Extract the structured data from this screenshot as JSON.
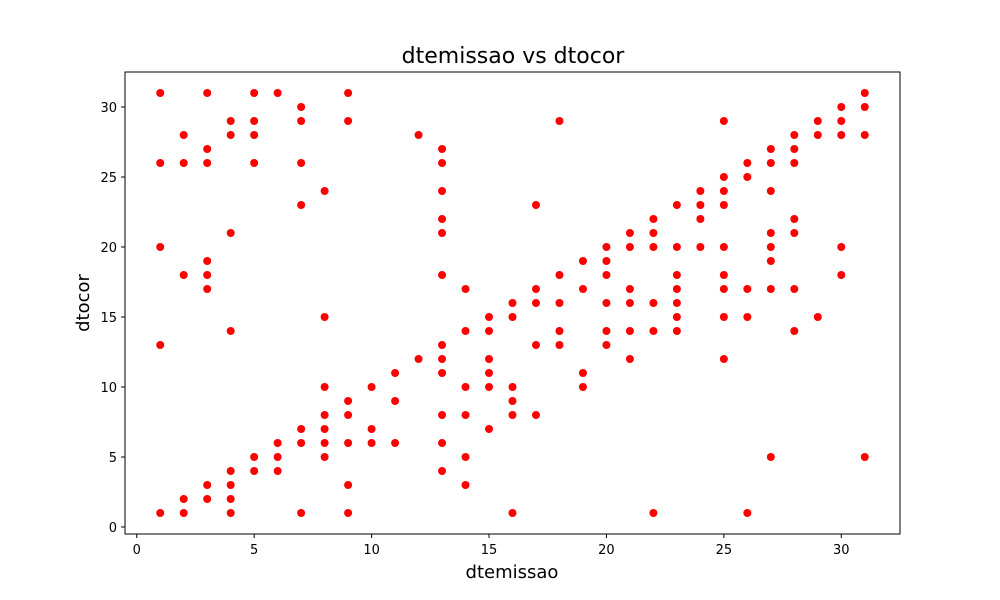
{
  "chart_data": {
    "type": "scatter",
    "title": "dtemissao vs dtocor",
    "xlabel": "dtemissao",
    "ylabel": "dtocor",
    "xlim": [
      -0.5,
      32.5
    ],
    "ylim": [
      -0.5,
      32.5
    ],
    "xticks": [
      0,
      5,
      10,
      15,
      20,
      25,
      30
    ],
    "yticks": [
      0,
      5,
      10,
      15,
      20,
      25,
      30
    ],
    "grid": false,
    "marker_color": "#ff0000",
    "series": [
      {
        "points": [
          [
            1,
            31
          ],
          [
            1,
            26
          ],
          [
            1,
            20
          ],
          [
            1,
            13
          ],
          [
            1,
            1
          ],
          [
            2,
            28
          ],
          [
            2,
            26
          ],
          [
            2,
            18
          ],
          [
            2,
            2
          ],
          [
            2,
            1
          ],
          [
            3,
            31
          ],
          [
            3,
            27
          ],
          [
            3,
            26
          ],
          [
            3,
            19
          ],
          [
            3,
            18
          ],
          [
            3,
            17
          ],
          [
            3,
            3
          ],
          [
            3,
            2
          ],
          [
            4,
            29
          ],
          [
            4,
            28
          ],
          [
            4,
            21
          ],
          [
            4,
            14
          ],
          [
            4,
            4
          ],
          [
            4,
            3
          ],
          [
            4,
            2
          ],
          [
            4,
            1
          ],
          [
            5,
            31
          ],
          [
            5,
            29
          ],
          [
            5,
            28
          ],
          [
            5,
            26
          ],
          [
            5,
            5
          ],
          [
            5,
            4
          ],
          [
            6,
            31
          ],
          [
            6,
            6
          ],
          [
            6,
            5
          ],
          [
            6,
            4
          ],
          [
            7,
            30
          ],
          [
            7,
            29
          ],
          [
            7,
            26
          ],
          [
            7,
            23
          ],
          [
            7,
            7
          ],
          [
            7,
            6
          ],
          [
            7,
            1
          ],
          [
            8,
            24
          ],
          [
            8,
            15
          ],
          [
            8,
            10
          ],
          [
            8,
            8
          ],
          [
            8,
            7
          ],
          [
            8,
            6
          ],
          [
            8,
            5
          ],
          [
            9,
            31
          ],
          [
            9,
            29
          ],
          [
            9,
            9
          ],
          [
            9,
            8
          ],
          [
            9,
            6
          ],
          [
            9,
            3
          ],
          [
            9,
            1
          ],
          [
            10,
            10
          ],
          [
            10,
            7
          ],
          [
            10,
            6
          ],
          [
            11,
            11
          ],
          [
            11,
            9
          ],
          [
            11,
            6
          ],
          [
            12,
            28
          ],
          [
            12,
            12
          ],
          [
            13,
            27
          ],
          [
            13,
            26
          ],
          [
            13,
            24
          ],
          [
            13,
            22
          ],
          [
            13,
            21
          ],
          [
            13,
            18
          ],
          [
            13,
            13
          ],
          [
            13,
            12
          ],
          [
            13,
            11
          ],
          [
            13,
            8
          ],
          [
            13,
            6
          ],
          [
            13,
            4
          ],
          [
            14,
            17
          ],
          [
            14,
            14
          ],
          [
            14,
            10
          ],
          [
            14,
            8
          ],
          [
            14,
            5
          ],
          [
            14,
            3
          ],
          [
            15,
            15
          ],
          [
            15,
            14
          ],
          [
            15,
            12
          ],
          [
            15,
            11
          ],
          [
            15,
            10
          ],
          [
            15,
            7
          ],
          [
            16,
            16
          ],
          [
            16,
            15
          ],
          [
            16,
            10
          ],
          [
            16,
            9
          ],
          [
            16,
            8
          ],
          [
            16,
            1
          ],
          [
            17,
            23
          ],
          [
            17,
            17
          ],
          [
            17,
            16
          ],
          [
            17,
            13
          ],
          [
            17,
            8
          ],
          [
            18,
            29
          ],
          [
            18,
            18
          ],
          [
            18,
            16
          ],
          [
            18,
            14
          ],
          [
            18,
            13
          ],
          [
            19,
            19
          ],
          [
            19,
            17
          ],
          [
            19,
            11
          ],
          [
            19,
            10
          ],
          [
            20,
            20
          ],
          [
            20,
            19
          ],
          [
            20,
            18
          ],
          [
            20,
            16
          ],
          [
            20,
            14
          ],
          [
            20,
            13
          ],
          [
            21,
            21
          ],
          [
            21,
            20
          ],
          [
            21,
            17
          ],
          [
            21,
            16
          ],
          [
            21,
            14
          ],
          [
            21,
            12
          ],
          [
            22,
            22
          ],
          [
            22,
            21
          ],
          [
            22,
            20
          ],
          [
            22,
            16
          ],
          [
            22,
            14
          ],
          [
            22,
            1
          ],
          [
            23,
            23
          ],
          [
            23,
            20
          ],
          [
            23,
            18
          ],
          [
            23,
            17
          ],
          [
            23,
            16
          ],
          [
            23,
            15
          ],
          [
            23,
            14
          ],
          [
            24,
            24
          ],
          [
            24,
            23
          ],
          [
            24,
            22
          ],
          [
            24,
            20
          ],
          [
            25,
            29
          ],
          [
            25,
            25
          ],
          [
            25,
            24
          ],
          [
            25,
            23
          ],
          [
            25,
            20
          ],
          [
            25,
            18
          ],
          [
            25,
            17
          ],
          [
            25,
            15
          ],
          [
            25,
            12
          ],
          [
            26,
            26
          ],
          [
            26,
            25
          ],
          [
            26,
            17
          ],
          [
            26,
            15
          ],
          [
            26,
            1
          ],
          [
            27,
            27
          ],
          [
            27,
            26
          ],
          [
            27,
            24
          ],
          [
            27,
            21
          ],
          [
            27,
            20
          ],
          [
            27,
            19
          ],
          [
            27,
            17
          ],
          [
            27,
            5
          ],
          [
            28,
            28
          ],
          [
            28,
            27
          ],
          [
            28,
            26
          ],
          [
            28,
            22
          ],
          [
            28,
            21
          ],
          [
            28,
            17
          ],
          [
            28,
            14
          ],
          [
            29,
            29
          ],
          [
            29,
            28
          ],
          [
            29,
            15
          ],
          [
            30,
            30
          ],
          [
            30,
            29
          ],
          [
            30,
            28
          ],
          [
            30,
            20
          ],
          [
            30,
            18
          ],
          [
            31,
            31
          ],
          [
            31,
            30
          ],
          [
            31,
            28
          ],
          [
            31,
            5
          ]
        ]
      }
    ]
  }
}
